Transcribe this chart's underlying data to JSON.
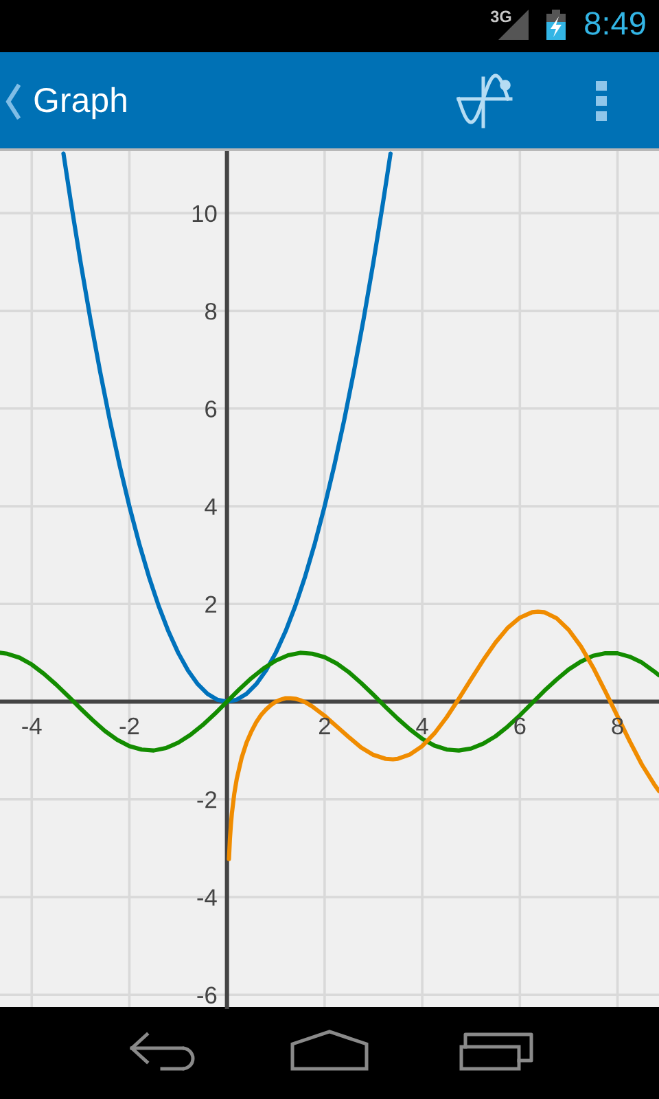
{
  "chart_data": {
    "type": "line",
    "title": "Graph",
    "annotations": [
      "3G",
      "8:49"
    ],
    "xlim": [
      -4.65,
      8.85
    ],
    "ylim": [
      -6.25,
      11.27
    ],
    "xticks": [
      -4,
      -2,
      2,
      4,
      6,
      8
    ],
    "yticks": [
      -6,
      -4,
      -2,
      2,
      4,
      6,
      8,
      10
    ],
    "grid": true,
    "series": [
      {
        "color": "#0072bc",
        "x": [
          -3.35,
          -3.2,
          -3.0,
          -2.8,
          -2.6,
          -2.4,
          -2.2,
          -2.0,
          -1.8,
          -1.6,
          -1.4,
          -1.2,
          -1.0,
          -0.8,
          -0.6,
          -0.4,
          -0.2,
          0,
          0.2,
          0.4,
          0.6,
          0.8,
          1.0,
          1.2,
          1.4,
          1.6,
          1.8,
          2.0,
          2.2,
          2.4,
          2.6,
          2.8,
          3.0,
          3.2,
          3.35
        ],
        "values": [
          11.22,
          10.24,
          9,
          7.84,
          6.76,
          5.76,
          4.84,
          4,
          3.24,
          2.56,
          1.96,
          1.44,
          1,
          0.64,
          0.36,
          0.16,
          0.04,
          0,
          0.04,
          0.16,
          0.36,
          0.64,
          1,
          1.44,
          1.96,
          2.56,
          3.24,
          4,
          4.84,
          5.76,
          6.76,
          7.84,
          9,
          10.24,
          11.22
        ]
      },
      {
        "color": "#138c00",
        "x": [
          -4.65,
          -4.5,
          -4.25,
          -4.0,
          -3.75,
          -3.5,
          -3.25,
          -3.0,
          -2.75,
          -2.5,
          -2.25,
          -2.0,
          -1.75,
          -1.5,
          -1.25,
          -1.0,
          -0.75,
          -0.5,
          -0.25,
          0,
          0.25,
          0.5,
          0.75,
          1.0,
          1.25,
          1.5,
          1.75,
          2.0,
          2.25,
          2.5,
          2.75,
          3.0,
          3.25,
          3.5,
          3.75,
          4.0,
          4.25,
          4.5,
          4.75,
          5.0,
          5.25,
          5.5,
          5.75,
          6.0,
          6.25,
          6.5,
          6.75,
          7.0,
          7.25,
          7.5,
          7.75,
          8.0,
          8.25,
          8.5,
          8.75,
          8.85
        ],
        "values": [
          1.0,
          0.98,
          0.9,
          0.76,
          0.57,
          0.35,
          0.11,
          -0.14,
          -0.38,
          -0.6,
          -0.78,
          -0.91,
          -0.98,
          -1.0,
          -0.95,
          -0.84,
          -0.68,
          -0.48,
          -0.25,
          0,
          0.25,
          0.48,
          0.68,
          0.84,
          0.95,
          1.0,
          0.98,
          0.91,
          0.78,
          0.6,
          0.38,
          0.14,
          -0.11,
          -0.35,
          -0.57,
          -0.76,
          -0.9,
          -0.98,
          -1.0,
          -0.96,
          -0.86,
          -0.71,
          -0.51,
          -0.28,
          -0.03,
          0.22,
          0.45,
          0.66,
          0.82,
          0.94,
          0.99,
          0.99,
          0.92,
          0.8,
          0.62,
          0.54
        ]
      },
      {
        "color": "#f08c00",
        "x": [
          0.04,
          0.06,
          0.08,
          0.1,
          0.15,
          0.2,
          0.3,
          0.4,
          0.5,
          0.6,
          0.7,
          0.8,
          0.9,
          1.0,
          1.1,
          1.2,
          1.3,
          1.4,
          1.5,
          1.6,
          1.75,
          2.0,
          2.25,
          2.5,
          2.75,
          3.0,
          3.25,
          3.4,
          3.5,
          3.75,
          4.0,
          4.25,
          4.5,
          4.75,
          5.0,
          5.25,
          5.5,
          5.75,
          6.0,
          6.25,
          6.37,
          6.5,
          6.75,
          7.0,
          7.25,
          7.5,
          7.75,
          8.0,
          8.25,
          8.5,
          8.75,
          8.85
        ],
        "values": [
          -3.22,
          -2.81,
          -2.52,
          -2.29,
          -1.88,
          -1.58,
          -1.15,
          -0.84,
          -0.61,
          -0.42,
          -0.27,
          -0.16,
          -0.07,
          0,
          0.04,
          0.07,
          0.07,
          0.06,
          0.03,
          -0.01,
          -0.1,
          -0.29,
          -0.51,
          -0.73,
          -0.94,
          -1.09,
          -1.17,
          -1.18,
          -1.17,
          -1.08,
          -0.91,
          -0.65,
          -0.32,
          0.06,
          0.46,
          0.85,
          1.21,
          1.51,
          1.72,
          1.83,
          1.84,
          1.83,
          1.71,
          1.47,
          1.13,
          0.7,
          0.21,
          -0.3,
          -0.81,
          -1.29,
          -1.69,
          -1.83
        ]
      }
    ]
  }
}
